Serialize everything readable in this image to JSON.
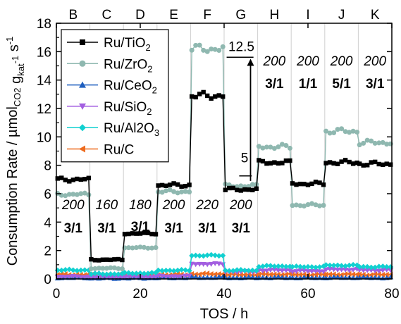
{
  "chart_data": {
    "type": "line",
    "xlabel": "TOS / h",
    "ylabel": "Consumption Rate / µmol_CO2 g_kat^-1 s^-1",
    "xlim": [
      0,
      80
    ],
    "ylim": [
      0,
      18
    ],
    "xticks": [
      0,
      20,
      40,
      60,
      80
    ],
    "yticks": [
      0,
      2,
      4,
      6,
      8,
      10,
      12,
      14,
      16,
      18
    ],
    "grid": false,
    "legend_position": "top-left",
    "sections": [
      {
        "label": "B",
        "start": 0,
        "end": 8,
        "temp": "200",
        "ratio": "3/1"
      },
      {
        "label": "C",
        "start": 8,
        "end": 16,
        "temp": "160",
        "ratio": "3/1"
      },
      {
        "label": "D",
        "start": 16,
        "end": 24,
        "temp": "180",
        "ratio": "3/1"
      },
      {
        "label": "E",
        "start": 24,
        "end": 32,
        "temp": "200",
        "ratio": "3/1"
      },
      {
        "label": "F",
        "start": 32,
        "end": 40,
        "temp": "220",
        "ratio": "3/1"
      },
      {
        "label": "G",
        "start": 40,
        "end": 48,
        "temp": "200",
        "ratio": "3/1"
      },
      {
        "label": "H",
        "start": 48,
        "end": 56,
        "temp": "200",
        "ratio": "3/1"
      },
      {
        "label": "I",
        "start": 56,
        "end": 64,
        "temp": "200",
        "ratio": "1/1"
      },
      {
        "label": "J",
        "start": 64,
        "end": 72,
        "temp": "200",
        "ratio": "5/1"
      },
      {
        "label": "K",
        "start": 72,
        "end": 80,
        "temp": "200",
        "ratio": "3/1"
      }
    ],
    "annotations": [
      {
        "text": "12.5",
        "x": 45,
        "y": 12.5
      },
      {
        "text": "5",
        "x": 45,
        "y": 6.8
      }
    ],
    "series": [
      {
        "name": "Ru/TiO2",
        "color": "#000000",
        "marker": "square",
        "levels": [
          7.0,
          1.35,
          3.2,
          6.6,
          12.9,
          6.3,
          8.2,
          6.7,
          8.2,
          8.1
        ]
      },
      {
        "name": "Ru/ZrO2",
        "color": "#8fb8b0",
        "marker": "circle",
        "levels": [
          5.95,
          0.75,
          2.2,
          6.15,
          16.2,
          6.55,
          9.3,
          5.2,
          10.4,
          9.6
        ]
      },
      {
        "name": "Ru/CeO2",
        "color": "#1f5fbf",
        "marker": "triangle-up",
        "levels": [
          0.08,
          0.05,
          0.06,
          0.08,
          0.1,
          0.08,
          0.09,
          0.08,
          0.09,
          0.08
        ]
      },
      {
        "name": "Ru/SiO2",
        "color": "#a35fe0",
        "marker": "triangle-down",
        "levels": [
          0.15,
          0.12,
          0.14,
          0.18,
          1.05,
          0.5,
          0.6,
          0.55,
          0.65,
          0.6
        ]
      },
      {
        "name": "Ru/Al2O3",
        "color": "#11d0d0",
        "marker": "diamond",
        "levels": [
          0.62,
          0.35,
          0.4,
          0.6,
          1.65,
          0.6,
          0.9,
          0.85,
          0.95,
          0.85
        ]
      },
      {
        "name": "Ru/C",
        "color": "#ee6b1e",
        "marker": "triangle-left",
        "levels": [
          0.3,
          0.25,
          0.28,
          0.3,
          0.35,
          0.3,
          0.32,
          0.3,
          0.32,
          0.3
        ]
      }
    ]
  }
}
